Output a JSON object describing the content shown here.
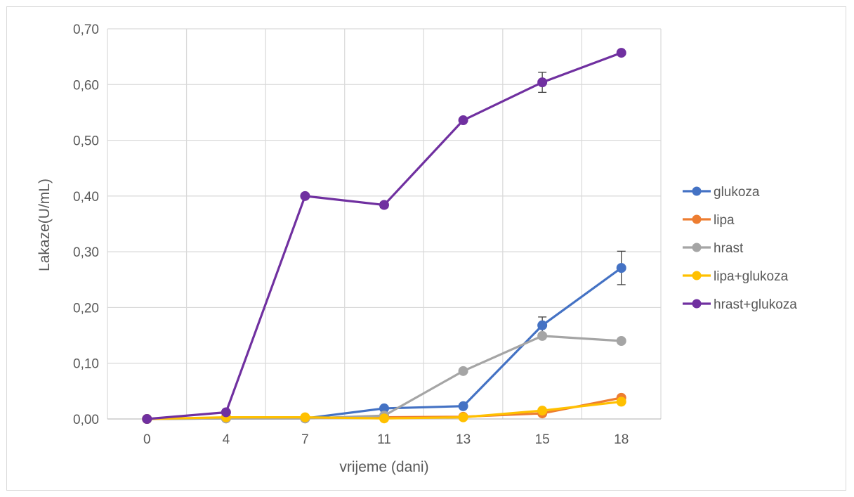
{
  "chart_data": {
    "type": "line",
    "title": "",
    "xlabel": "vrijeme (dani)",
    "ylabel": "Lakaze(U/mL)",
    "categories": [
      "0",
      "4",
      "7",
      "11",
      "13",
      "15",
      "18"
    ],
    "ylim": [
      0,
      0.7
    ],
    "yticks": [
      0,
      0.1,
      0.2,
      0.3,
      0.4,
      0.5,
      0.6,
      0.7
    ],
    "ytick_labels": [
      "0,00",
      "0,10",
      "0,20",
      "0,30",
      "0,40",
      "0,50",
      "0,60",
      "0,70"
    ],
    "grid": true,
    "legend": "right",
    "series": [
      {
        "name": "glukoza",
        "color": "#4472c4",
        "values": [
          0.0,
          0.001,
          0.001,
          0.019,
          0.023,
          0.168,
          0.271
        ],
        "errors": [
          0,
          0,
          0,
          0,
          0,
          0.015,
          0.03
        ]
      },
      {
        "name": "lipa",
        "color": "#ed7d31",
        "values": [
          0.0,
          0.002,
          0.002,
          0.003,
          0.004,
          0.01,
          0.038
        ],
        "errors": [
          0,
          0,
          0,
          0,
          0,
          0,
          0
        ]
      },
      {
        "name": "hrast",
        "color": "#a5a5a5",
        "values": [
          0.0,
          0.001,
          0.001,
          0.006,
          0.086,
          0.149,
          0.14
        ],
        "errors": [
          0,
          0,
          0,
          0,
          0,
          0,
          0
        ]
      },
      {
        "name": "lipa+glukoza",
        "color": "#ffc000",
        "values": [
          0.0,
          0.003,
          0.003,
          0.001,
          0.003,
          0.015,
          0.031
        ],
        "errors": [
          0,
          0,
          0,
          0,
          0,
          0,
          0
        ]
      },
      {
        "name": "hrast+glukoza",
        "color": "#7030a0",
        "values": [
          0.0,
          0.012,
          0.4,
          0.384,
          0.536,
          0.604,
          0.657
        ],
        "errors": [
          0,
          0,
          0,
          0.005,
          0,
          0.018,
          0
        ]
      }
    ]
  }
}
